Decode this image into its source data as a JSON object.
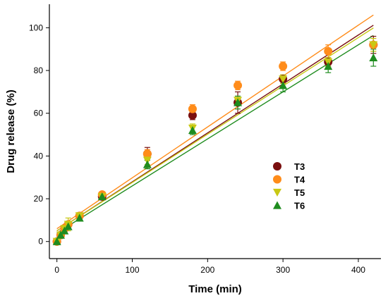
{
  "chart_data": {
    "type": "scatter",
    "xlabel": "Time (min)",
    "ylabel": "Drug release (%)",
    "xlim": [
      -10,
      430
    ],
    "ylim": [
      -8,
      111
    ],
    "xticks": [
      0,
      100,
      200,
      300,
      400
    ],
    "yticks": [
      0,
      20,
      40,
      60,
      80,
      100
    ],
    "grid": false,
    "legend_position": "center-right",
    "series": [
      {
        "name": "T3",
        "color": "#7a0f0f",
        "marker": "circle",
        "x": [
          0,
          5,
          10,
          15,
          30,
          60,
          120,
          180,
          240,
          300,
          360,
          420
        ],
        "y": [
          0,
          3,
          6,
          8,
          12,
          21,
          41,
          59,
          65,
          76,
          84,
          92
        ],
        "err": [
          1,
          1,
          1,
          1,
          1,
          1,
          3,
          2,
          5,
          2,
          2,
          4
        ],
        "fit": [
          5,
          0.229
        ]
      },
      {
        "name": "T4",
        "color": "#ff8c1a",
        "marker": "circle",
        "x": [
          0,
          5,
          10,
          15,
          30,
          60,
          120,
          180,
          240,
          300,
          360,
          420
        ],
        "y": [
          0,
          3,
          6,
          8,
          12,
          22,
          41,
          62,
          73,
          82,
          89,
          92
        ],
        "err": [
          1,
          1,
          1,
          1,
          1,
          1,
          2,
          2,
          2,
          2,
          3,
          3
        ],
        "fit": [
          6,
          0.238
        ]
      },
      {
        "name": "T5",
        "color": "#c8c814",
        "marker": "triangle-down",
        "x": [
          0,
          5,
          10,
          15,
          30,
          60,
          120,
          180,
          240,
          300,
          360,
          420
        ],
        "y": [
          0,
          3,
          6,
          8,
          12,
          21,
          38,
          53,
          66,
          76,
          84,
          92
        ],
        "err": [
          1,
          1,
          1,
          3,
          1,
          1,
          2,
          2,
          2,
          2,
          2,
          3
        ],
        "fit": [
          5,
          0.226
        ]
      },
      {
        "name": "T6",
        "color": "#1f8c1f",
        "marker": "triangle-up",
        "x": [
          0,
          5,
          10,
          15,
          30,
          60,
          120,
          180,
          240,
          300,
          360,
          420
        ],
        "y": [
          0,
          3,
          5,
          7,
          11,
          21,
          36,
          52,
          65,
          73,
          82,
          86
        ],
        "err": [
          1,
          1,
          1,
          1,
          1,
          1,
          2,
          2,
          3,
          3,
          3,
          4
        ],
        "fit": [
          4,
          0.22
        ]
      }
    ]
  }
}
